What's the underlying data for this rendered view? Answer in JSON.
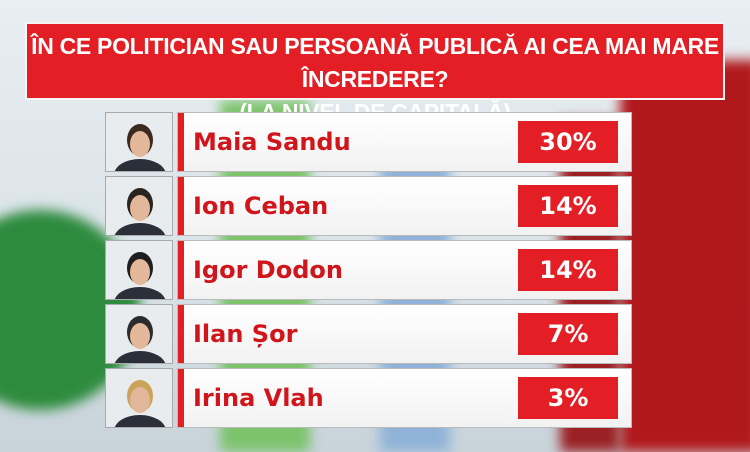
{
  "title": {
    "lines": [
      "ÎN CE POLITICIAN SAU PERSOANĂ PUBLICĂ AI CEA MAI MARE ÎNCREDERE?",
      "(LA NIVEL DE CAPITALĂ)"
    ]
  },
  "rows": [
    {
      "name": "Maia Sandu",
      "value": "30%"
    },
    {
      "name": "Ion Ceban",
      "value": "14%"
    },
    {
      "name": "Igor Dodon",
      "value": "14%"
    },
    {
      "name": "Ilan Șor",
      "value": "7%"
    },
    {
      "name": "Irina Vlah",
      "value": "3%"
    }
  ]
}
